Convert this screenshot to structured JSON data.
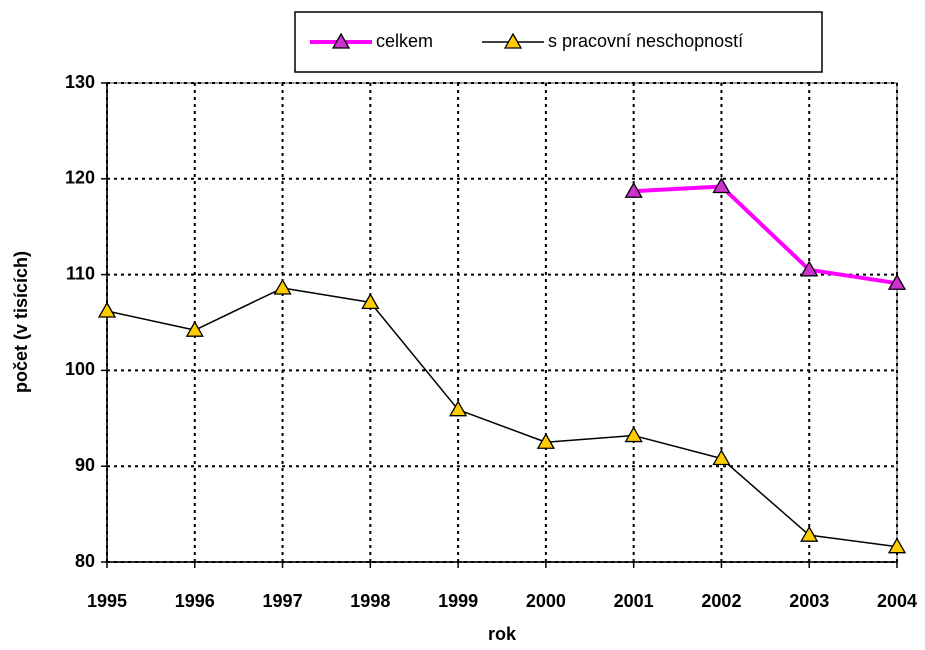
{
  "chart_data": {
    "type": "line",
    "x_label": "rok",
    "y_label": "počet (v tisících)",
    "x": [
      1995,
      1996,
      1997,
      1998,
      1999,
      2000,
      2001,
      2002,
      2003,
      2004
    ],
    "xlim": [
      1995,
      2004
    ],
    "xticks": [
      1995,
      1996,
      1997,
      1998,
      1999,
      2000,
      2001,
      2002,
      2003,
      2004
    ],
    "ylim": [
      80,
      130
    ],
    "yticks": [
      80,
      90,
      100,
      110,
      120,
      130
    ],
    "grid": true,
    "legend": "top",
    "series": [
      {
        "name": "celkem",
        "color": "#ff00ff",
        "marker_color": "#cc33cc",
        "values": [
          null,
          null,
          null,
          null,
          null,
          null,
          118.7,
          119.2,
          110.5,
          109.1
        ]
      },
      {
        "name": "s pracovní neschopností",
        "color": "#000000",
        "marker_color": "#ffcc00",
        "values": [
          106.2,
          104.2,
          108.6,
          107.1,
          95.9,
          92.5,
          93.2,
          90.8,
          82.8,
          81.6
        ]
      }
    ]
  }
}
